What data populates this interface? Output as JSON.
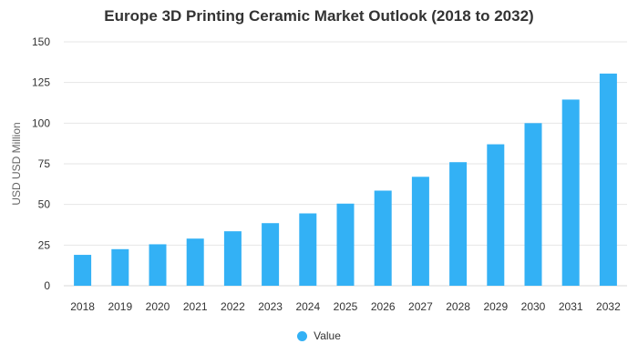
{
  "chart_data": {
    "type": "bar",
    "title": "Europe 3D Printing Ceramic Market Outlook (2018 to 2032)",
    "xlabel": "",
    "ylabel": "USD USD Million",
    "categories": [
      "2018",
      "2019",
      "2020",
      "2021",
      "2022",
      "2023",
      "2024",
      "2025",
      "2026",
      "2027",
      "2028",
      "2029",
      "2030",
      "2031",
      "2032"
    ],
    "series": [
      {
        "name": "Value",
        "color": "#33b1f5",
        "values": [
          19,
          22.5,
          25.5,
          29,
          33.5,
          38.5,
          44.5,
          50.5,
          58.5,
          67,
          76,
          87,
          100,
          114.5,
          130.5
        ]
      }
    ],
    "yticks": [
      0,
      25,
      50,
      75,
      100,
      125,
      150
    ],
    "ylim": [
      0,
      150
    ],
    "grid": true,
    "legend_position": "bottom-center"
  }
}
